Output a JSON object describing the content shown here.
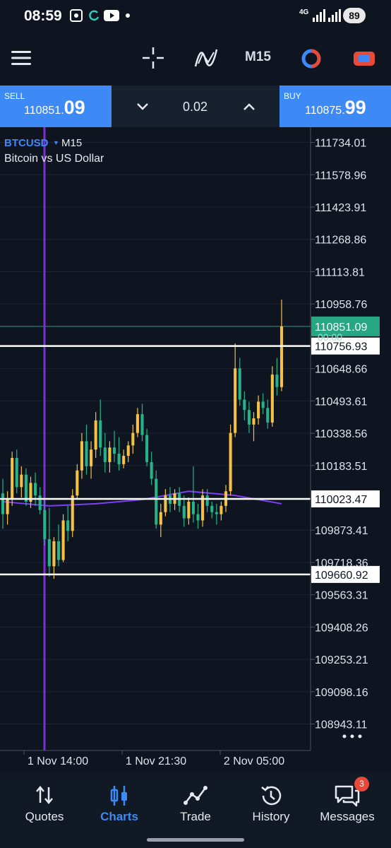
{
  "status_bar": {
    "time": "08:59",
    "network": "4G",
    "battery": "89",
    "icons": [
      "screenshot-icon",
      "sync-icon",
      "youtube-icon",
      "dot-icon",
      "wifi-signal-icon",
      "cell-signal-icon"
    ]
  },
  "toolbar": {
    "timeframe": "M15",
    "icons": [
      "menu-icon",
      "crosshair-icon",
      "indicators-icon",
      "objects-icon",
      "one-click-trading-icon"
    ]
  },
  "trade_panel": {
    "sell": {
      "label": "SELL",
      "price_main": "110851.",
      "price_big": "09"
    },
    "buy": {
      "label": "BUY",
      "price_main": "110875.",
      "price_big": "99"
    },
    "volume": "0.02"
  },
  "symbol": {
    "name": "BTCUSD",
    "timeframe": "M15",
    "description": "Bitcoin vs US Dollar"
  },
  "chart_data": {
    "type": "candlestick",
    "symbol": "BTCUSD",
    "timeframe": "M15",
    "y_ticks": [
      "111734.01",
      "111578.96",
      "111423.91",
      "111268.86",
      "111113.81",
      "110958.76",
      "110648.66",
      "110493.61",
      "110338.56",
      "110183.51",
      "109873.41",
      "109718.36",
      "109563.31",
      "109408.26",
      "109253.21",
      "109098.16",
      "108943.11"
    ],
    "ylim": [
      108850,
      111780
    ],
    "x_labels": [
      "1 Nov 14:00",
      "1 Nov 21:30",
      "2 Nov 05:00"
    ],
    "bid_price_label": "110851.09",
    "bid_timer_label": "00:00",
    "horizontal_lines": [
      {
        "price": 110756.93,
        "label": "110756.93"
      },
      {
        "price": 110023.47,
        "label": "110023.47"
      },
      {
        "price": 109660.92,
        "label": "109660.92"
      }
    ],
    "vertical_line_time": "1 Nov 14:00",
    "colors": {
      "bull": "#f5c144",
      "bear": "#26b38a",
      "ma": "#7b3ff2",
      "bid_line": "#1fa386",
      "bid_label": "#26a682",
      "vline": "#7a2fd6",
      "level": "#ffffff"
    },
    "candles": [
      [
        110050,
        110120,
        109880,
        109950
      ],
      [
        109950,
        110060,
        109900,
        110020
      ],
      [
        110020,
        110250,
        109990,
        110220
      ],
      [
        110220,
        110260,
        110050,
        110080
      ],
      [
        110080,
        110180,
        110030,
        110140
      ],
      [
        110140,
        110170,
        109990,
        110010
      ],
      [
        110010,
        110130,
        109980,
        110100
      ],
      [
        110100,
        110150,
        109990,
        110040
      ],
      [
        110040,
        110080,
        109950,
        109970
      ],
      [
        109970,
        110020,
        109800,
        109830
      ],
      [
        109830,
        109980,
        109650,
        109700
      ],
      [
        109700,
        109840,
        109640,
        109820
      ],
      [
        109820,
        109900,
        109700,
        109730
      ],
      [
        109730,
        109950,
        109720,
        109920
      ],
      [
        109920,
        109990,
        109820,
        109870
      ],
      [
        109870,
        110070,
        109840,
        110040
      ],
      [
        110040,
        110190,
        110020,
        110160
      ],
      [
        110160,
        110340,
        110120,
        110300
      ],
      [
        110300,
        110380,
        110140,
        110180
      ],
      [
        110180,
        110300,
        110120,
        110260
      ],
      [
        110260,
        110440,
        110220,
        110400
      ],
      [
        110400,
        110500,
        110230,
        110270
      ],
      [
        110270,
        110340,
        110150,
        110200
      ],
      [
        110200,
        110300,
        110150,
        110270
      ],
      [
        110270,
        110350,
        110200,
        110240
      ],
      [
        110240,
        110320,
        110160,
        110190
      ],
      [
        110190,
        110260,
        110170,
        110230
      ],
      [
        110230,
        110300,
        110200,
        110280
      ],
      [
        110280,
        110380,
        110240,
        110340
      ],
      [
        110340,
        110460,
        110320,
        110430
      ],
      [
        110430,
        110480,
        110300,
        110330
      ],
      [
        110330,
        110360,
        110180,
        110200
      ],
      [
        110200,
        110250,
        110090,
        110120
      ],
      [
        110120,
        110160,
        109880,
        109900
      ],
      [
        109900,
        110000,
        109840,
        109960
      ],
      [
        109960,
        110070,
        109940,
        110040
      ],
      [
        110040,
        110080,
        109960,
        110000
      ],
      [
        110000,
        110070,
        109970,
        110050
      ],
      [
        110050,
        110080,
        109960,
        109990
      ],
      [
        109990,
        110040,
        109890,
        109930
      ],
      [
        109930,
        110030,
        109900,
        110010
      ],
      [
        110010,
        110180,
        109910,
        109950
      ],
      [
        109950,
        110000,
        109880,
        109920
      ],
      [
        109920,
        110070,
        109890,
        110040
      ],
      [
        110040,
        110070,
        109960,
        109990
      ],
      [
        109990,
        110010,
        109930,
        109960
      ],
      [
        109960,
        110000,
        109900,
        109950
      ],
      [
        109950,
        110010,
        109920,
        109990
      ],
      [
        109990,
        110090,
        109960,
        110060
      ],
      [
        110060,
        110380,
        110040,
        110340
      ],
      [
        110340,
        110770,
        110320,
        110650
      ],
      [
        110650,
        110700,
        110470,
        110500
      ],
      [
        110500,
        110540,
        110400,
        110450
      ],
      [
        110450,
        110490,
        110340,
        110380
      ],
      [
        110380,
        110440,
        110300,
        110410
      ],
      [
        110410,
        110520,
        110380,
        110490
      ],
      [
        110490,
        110530,
        110430,
        110460
      ],
      [
        110460,
        110500,
        110360,
        110390
      ],
      [
        110390,
        110660,
        110370,
        110620
      ],
      [
        110620,
        110700,
        110520,
        110560
      ],
      [
        110560,
        110980,
        110540,
        110851
      ]
    ],
    "ma": [
      [
        110000,
        110010
      ],
      [
        110300,
        109990
      ],
      [
        110600,
        110000
      ],
      [
        110800,
        110020
      ],
      [
        110950,
        110060
      ],
      [
        111100,
        110040
      ],
      [
        111250,
        110000
      ]
    ]
  },
  "bottom_nav": {
    "items": [
      {
        "id": "quotes",
        "label": "Quotes"
      },
      {
        "id": "charts",
        "label": "Charts"
      },
      {
        "id": "trade",
        "label": "Trade"
      },
      {
        "id": "history",
        "label": "History"
      },
      {
        "id": "messages",
        "label": "Messages"
      }
    ],
    "active": "charts",
    "messages_badge": "3"
  }
}
